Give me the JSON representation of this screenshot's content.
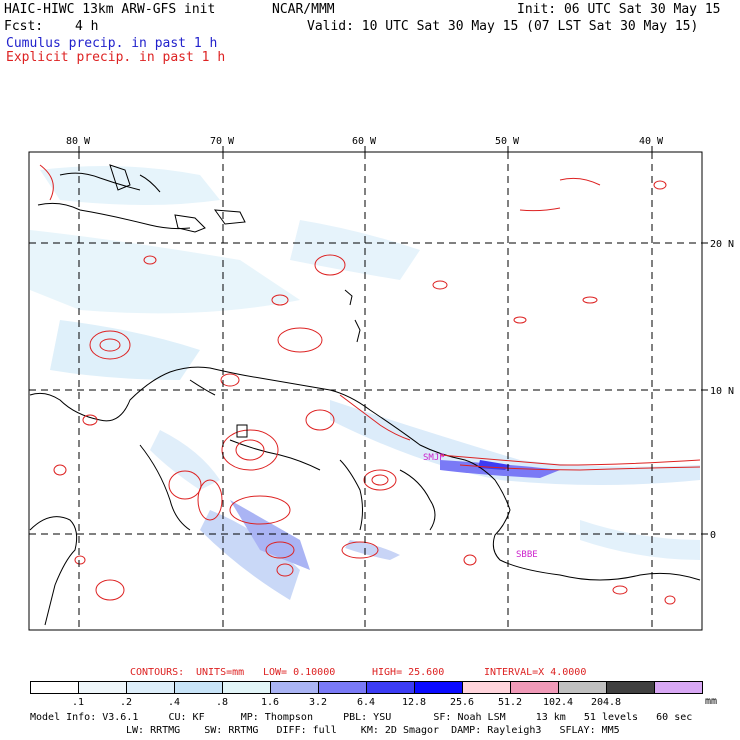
{
  "header": {
    "model": "HAIC-HIWC 13km ARW-GFS init",
    "org": "NCAR/MMM",
    "init": "Init: 06 UTC Sat 30 May 15",
    "fcst_label": "Fcst:",
    "fcst_value": "4 h",
    "valid": "Valid: 10 UTC Sat 30 May 15 (07 LST Sat 30 May 15)",
    "cumulus": "Cumulus precip. in past 1 h",
    "explicit": "Explicit precip. in past 1 h"
  },
  "map": {
    "lon_labels": [
      "80 W",
      "70 W",
      "60 W",
      "50 W",
      "40 W"
    ],
    "lat_labels": [
      "20 N",
      "10 N",
      "0"
    ],
    "station_labels": [
      "SMJP",
      "SBBE"
    ]
  },
  "contours": {
    "label": "CONTOURS:",
    "units": "UNITS=mm",
    "low": "LOW= 0.10000",
    "high": "HIGH= 25.600",
    "interval": "INTERVAL=X 4.0000"
  },
  "legend": {
    "unit": "mm",
    "bins": [
      {
        "label": ".1",
        "color": "#ffffff"
      },
      {
        "label": ".2",
        "color": "#eef6fa"
      },
      {
        "label": ".4",
        "color": "#ddeefa"
      },
      {
        "label": ".8",
        "color": "#c8e4f8"
      },
      {
        "label": "1.6",
        "color": "#e2f5f8"
      },
      {
        "label": "3.2",
        "color": "#aab4f4"
      },
      {
        "label": "6.4",
        "color": "#7a7af6"
      },
      {
        "label": "12.8",
        "color": "#3c3cf4"
      },
      {
        "label": "25.6",
        "color": "#0a0aff"
      },
      {
        "label": "51.2",
        "color": "#ffd4dc"
      },
      {
        "label": "102.4",
        "color": "#f09ab8"
      },
      {
        "label": "204.8",
        "color": "#c0c0c0"
      },
      {
        "label": "",
        "color": "#404040"
      },
      {
        "label": "",
        "color": "#d8a8f4"
      }
    ]
  },
  "footer": {
    "line1": "Model Info: V3.6.1     CU: KF      MP: Thompson     PBL: YSU       SF: Noah LSM     13 km   51 levels   60 sec",
    "line2": "LW: RRTMG    SW: RRTMG   DIFF: full    KM: 2D Smagor  DAMP: Rayleigh3   SFLAY: MM5"
  }
}
